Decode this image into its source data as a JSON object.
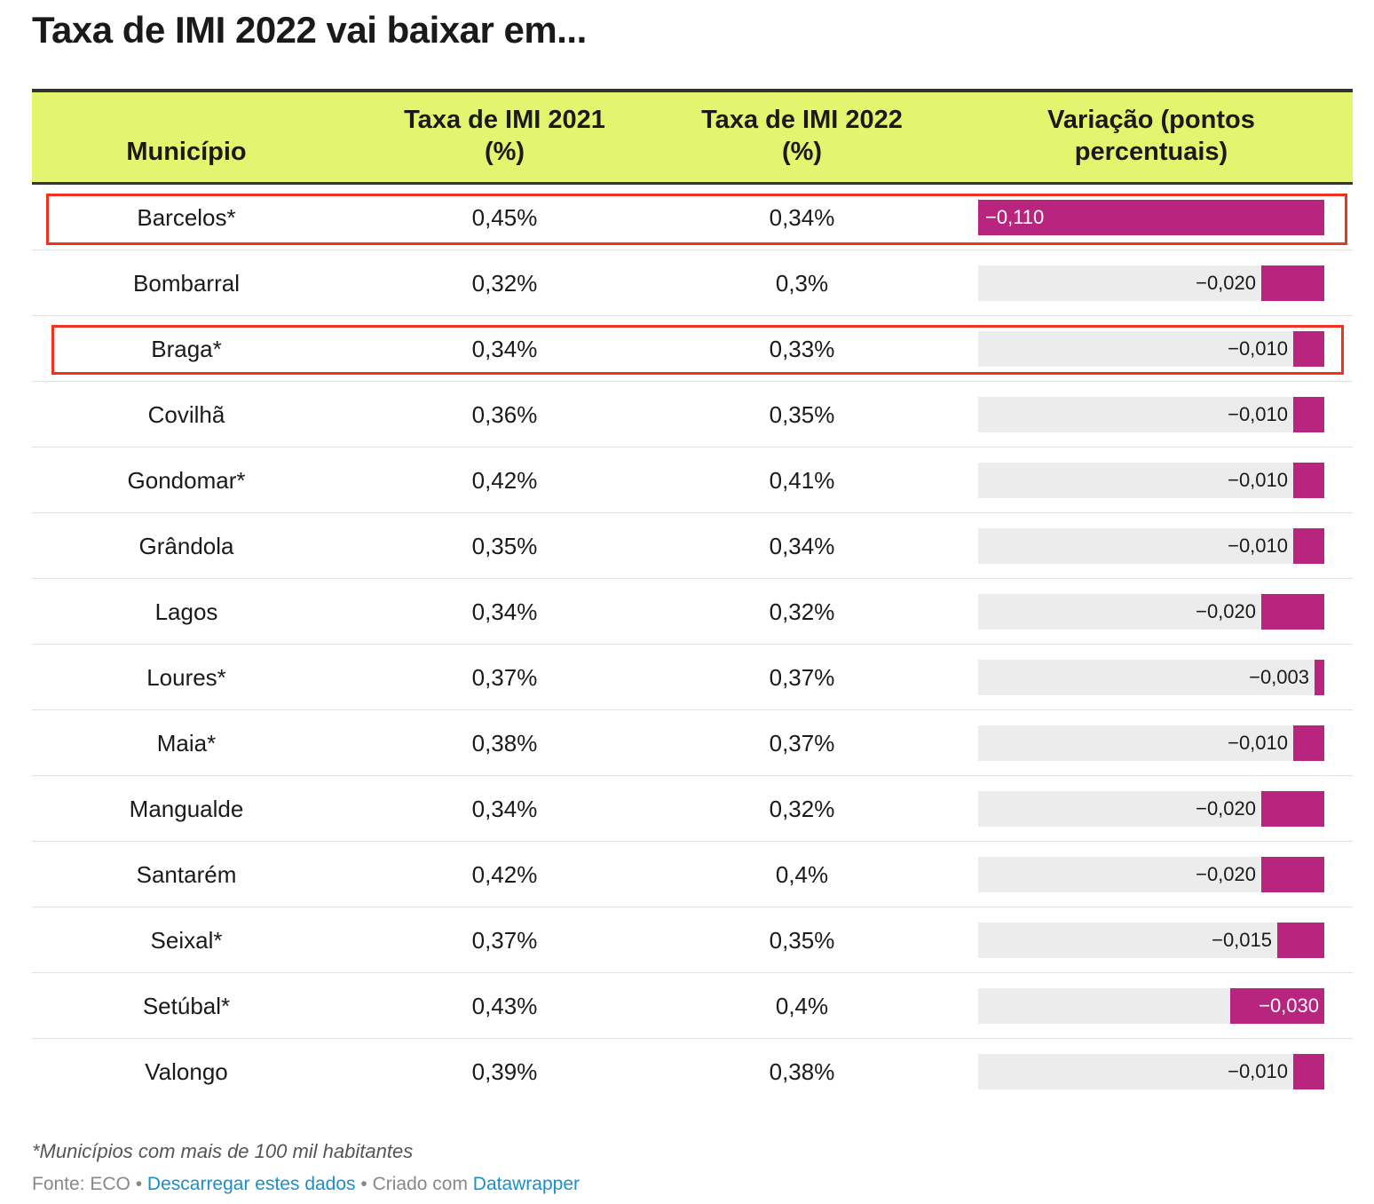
{
  "title": "Taxa de IMI 2022 vai baixar em...",
  "colors": {
    "header_bg": "#e3f56e",
    "bar": "#b8257f",
    "bar_track": "#ececec",
    "highlight": "#f0321e",
    "link": "#1a8fc9"
  },
  "chart_data": {
    "type": "table",
    "title": "Taxa de IMI 2022 vai baixar em...",
    "columns": [
      {
        "label_lines": [
          "Município"
        ]
      },
      {
        "label_lines": [
          "Taxa de IMI 2021",
          "(%)"
        ]
      },
      {
        "label_lines": [
          "Taxa de IMI 2022",
          "(%)"
        ]
      },
      {
        "label_lines": [
          "Variação (pontos",
          "percentuais)"
        ]
      }
    ],
    "bar_column": {
      "min": -0.11,
      "max": 0
    },
    "rows": [
      {
        "municipio": "Barcelos*",
        "taxa_2021": "0,45%",
        "taxa_2022": "0,34%",
        "variacao": -0.11,
        "variacao_label": "−0,110",
        "highlighted": true
      },
      {
        "municipio": "Bombarral",
        "taxa_2021": "0,32%",
        "taxa_2022": "0,3%",
        "variacao": -0.02,
        "variacao_label": "−0,020",
        "highlighted": false
      },
      {
        "municipio": "Braga*",
        "taxa_2021": "0,34%",
        "taxa_2022": "0,33%",
        "variacao": -0.01,
        "variacao_label": "−0,010",
        "highlighted": true
      },
      {
        "municipio": "Covilhã",
        "taxa_2021": "0,36%",
        "taxa_2022": "0,35%",
        "variacao": -0.01,
        "variacao_label": "−0,010",
        "highlighted": false
      },
      {
        "municipio": "Gondomar*",
        "taxa_2021": "0,42%",
        "taxa_2022": "0,41%",
        "variacao": -0.01,
        "variacao_label": "−0,010",
        "highlighted": false
      },
      {
        "municipio": "Grândola",
        "taxa_2021": "0,35%",
        "taxa_2022": "0,34%",
        "variacao": -0.01,
        "variacao_label": "−0,010",
        "highlighted": false
      },
      {
        "municipio": "Lagos",
        "taxa_2021": "0,34%",
        "taxa_2022": "0,32%",
        "variacao": -0.02,
        "variacao_label": "−0,020",
        "highlighted": false
      },
      {
        "municipio": "Loures*",
        "taxa_2021": "0,37%",
        "taxa_2022": "0,37%",
        "variacao": -0.003,
        "variacao_label": "−0,003",
        "highlighted": false
      },
      {
        "municipio": "Maia*",
        "taxa_2021": "0,38%",
        "taxa_2022": "0,37%",
        "variacao": -0.01,
        "variacao_label": "−0,010",
        "highlighted": false
      },
      {
        "municipio": "Mangualde",
        "taxa_2021": "0,34%",
        "taxa_2022": "0,32%",
        "variacao": -0.02,
        "variacao_label": "−0,020",
        "highlighted": false
      },
      {
        "municipio": "Santarém",
        "taxa_2021": "0,42%",
        "taxa_2022": "0,4%",
        "variacao": -0.02,
        "variacao_label": "−0,020",
        "highlighted": false
      },
      {
        "municipio": "Seixal*",
        "taxa_2021": "0,37%",
        "taxa_2022": "0,35%",
        "variacao": -0.015,
        "variacao_label": "−0,015",
        "highlighted": false
      },
      {
        "municipio": "Setúbal*",
        "taxa_2021": "0,43%",
        "taxa_2022": "0,4%",
        "variacao": -0.03,
        "variacao_label": "−0,030",
        "highlighted": false
      },
      {
        "municipio": "Valongo",
        "taxa_2021": "0,39%",
        "taxa_2022": "0,38%",
        "variacao": -0.01,
        "variacao_label": "−0,010",
        "highlighted": false
      }
    ]
  },
  "notes": "*Municípios com mais de 100 mil habitantes",
  "footer": {
    "source_prefix": "Fonte: ECO",
    "separator": " • ",
    "download_link": "Descarregar estes dados",
    "created_prefix": "Criado com ",
    "created_link": "Datawrapper"
  }
}
